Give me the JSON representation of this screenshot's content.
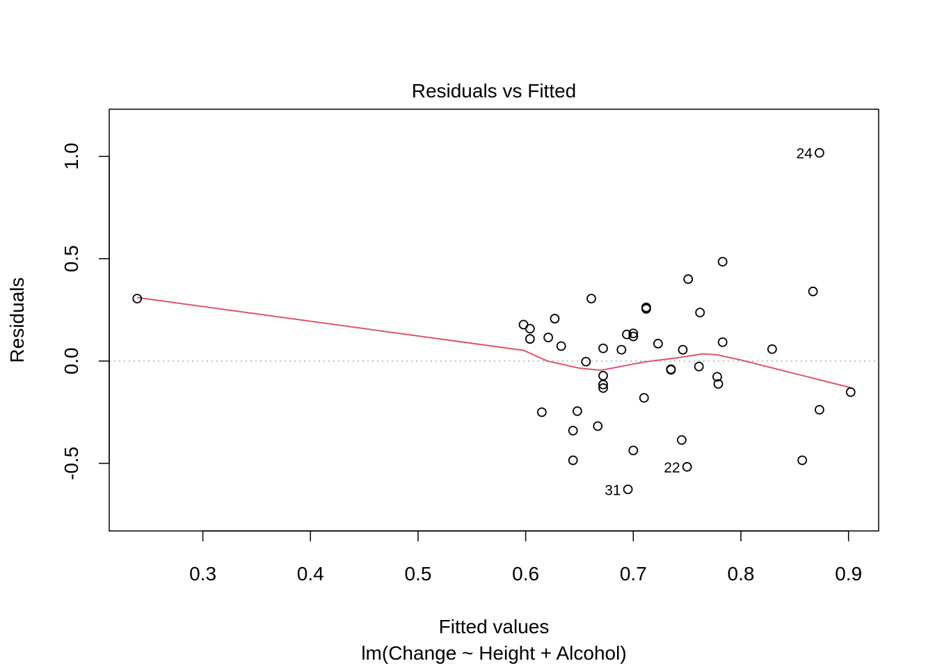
{
  "chart_data": {
    "type": "scatter",
    "title": "Residuals vs Fitted",
    "xlabel": "Fitted values",
    "subtitle": "lm(Change ~ Height + Alcohol)",
    "ylabel": "Residuals",
    "xlim": [
      0.213,
      0.928
    ],
    "ylim": [
      -0.83,
      1.23
    ],
    "xticks": [
      {
        "value": 0.3,
        "label": "0.3"
      },
      {
        "value": 0.4,
        "label": "0.4"
      },
      {
        "value": 0.5,
        "label": "0.5"
      },
      {
        "value": 0.6,
        "label": "0.6"
      },
      {
        "value": 0.7,
        "label": "0.7"
      },
      {
        "value": 0.8,
        "label": "0.8"
      },
      {
        "value": 0.9,
        "label": "0.9"
      }
    ],
    "yticks": [
      {
        "value": -0.5,
        "label": "-0.5"
      },
      {
        "value": 0.0,
        "label": "0.0"
      },
      {
        "value": 0.5,
        "label": "0.5"
      },
      {
        "value": 1.0,
        "label": "1.0"
      }
    ],
    "reference_line": {
      "y": 0.0,
      "style": "dotted",
      "color": "#bebebe"
    },
    "smooth_color": "#df536b",
    "points": [
      {
        "x": 0.239,
        "y": 0.305
      },
      {
        "x": 0.598,
        "y": 0.178
      },
      {
        "x": 0.604,
        "y": 0.158
      },
      {
        "x": 0.604,
        "y": 0.108
      },
      {
        "x": 0.615,
        "y": -0.25
      },
      {
        "x": 0.621,
        "y": 0.115
      },
      {
        "x": 0.627,
        "y": 0.207
      },
      {
        "x": 0.633,
        "y": 0.073
      },
      {
        "x": 0.644,
        "y": -0.34
      },
      {
        "x": 0.644,
        "y": -0.485
      },
      {
        "x": 0.648,
        "y": -0.245
      },
      {
        "x": 0.656,
        "y": -0.003
      },
      {
        "x": 0.661,
        "y": 0.305
      },
      {
        "x": 0.667,
        "y": -0.318
      },
      {
        "x": 0.672,
        "y": 0.062
      },
      {
        "x": 0.672,
        "y": -0.072
      },
      {
        "x": 0.672,
        "y": -0.115
      },
      {
        "x": 0.672,
        "y": -0.132
      },
      {
        "x": 0.689,
        "y": 0.055
      },
      {
        "x": 0.694,
        "y": 0.13
      },
      {
        "x": 0.695,
        "y": -0.627,
        "label": "31"
      },
      {
        "x": 0.7,
        "y": 0.135
      },
      {
        "x": 0.7,
        "y": 0.12
      },
      {
        "x": 0.7,
        "y": -0.437
      },
      {
        "x": 0.71,
        "y": -0.18
      },
      {
        "x": 0.712,
        "y": 0.262
      },
      {
        "x": 0.712,
        "y": 0.255
      },
      {
        "x": 0.723,
        "y": 0.085
      },
      {
        "x": 0.735,
        "y": -0.04
      },
      {
        "x": 0.735,
        "y": -0.043
      },
      {
        "x": 0.745,
        "y": -0.386
      },
      {
        "x": 0.746,
        "y": 0.055
      },
      {
        "x": 0.75,
        "y": -0.517,
        "label": "22"
      },
      {
        "x": 0.751,
        "y": 0.4
      },
      {
        "x": 0.761,
        "y": -0.027
      },
      {
        "x": 0.762,
        "y": 0.237
      },
      {
        "x": 0.778,
        "y": -0.077
      },
      {
        "x": 0.779,
        "y": -0.112
      },
      {
        "x": 0.783,
        "y": 0.485
      },
      {
        "x": 0.783,
        "y": 0.092
      },
      {
        "x": 0.829,
        "y": 0.058
      },
      {
        "x": 0.857,
        "y": -0.485
      },
      {
        "x": 0.867,
        "y": 0.34
      },
      {
        "x": 0.873,
        "y": 1.017,
        "label": "24"
      },
      {
        "x": 0.873,
        "y": -0.238
      },
      {
        "x": 0.902,
        "y": -0.152
      }
    ],
    "smooth_line": [
      {
        "x": 0.239,
        "y": 0.31
      },
      {
        "x": 0.598,
        "y": 0.052
      },
      {
        "x": 0.62,
        "y": 0.0
      },
      {
        "x": 0.65,
        "y": -0.035
      },
      {
        "x": 0.67,
        "y": -0.045
      },
      {
        "x": 0.69,
        "y": -0.025
      },
      {
        "x": 0.71,
        "y": -0.005
      },
      {
        "x": 0.74,
        "y": 0.015
      },
      {
        "x": 0.765,
        "y": 0.035
      },
      {
        "x": 0.778,
        "y": 0.03
      },
      {
        "x": 0.8,
        "y": 0.005
      },
      {
        "x": 0.902,
        "y": -0.13
      }
    ]
  }
}
